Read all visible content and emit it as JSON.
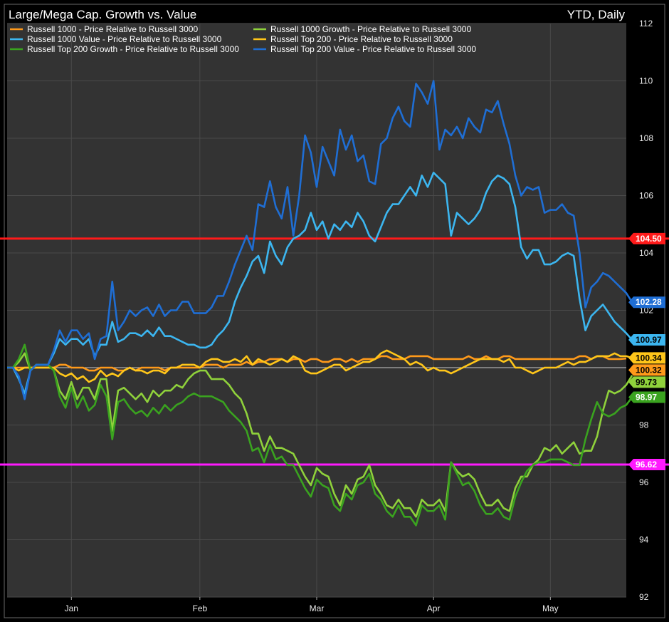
{
  "chart_data": {
    "type": "line",
    "title": "Large/Mega Cap. Growth vs. Value",
    "subtitle": "YTD, Daily",
    "ylim": [
      92,
      112
    ],
    "yticks": [
      92,
      94,
      96,
      98,
      100,
      102,
      104,
      106,
      108,
      110,
      112
    ],
    "xticks": [
      {
        "label": "Jan",
        "x": 11
      },
      {
        "label": "Feb",
        "x": 33
      },
      {
        "label": "Mar",
        "x": 53
      },
      {
        "label": "Apr",
        "x": 73
      },
      {
        "label": "May",
        "x": 93
      }
    ],
    "xlim": [
      0,
      106
    ],
    "grid": true,
    "legend": "top-left",
    "colors": {
      "background": "#333333",
      "frame": "#000000",
      "grid": "#4a4a4a",
      "baseline": "#c8c8c8"
    },
    "reference_lines": [
      {
        "value": 104.5,
        "label": "104.50",
        "color": "#ff1a1a"
      },
      {
        "value": 96.62,
        "label": "96.62",
        "color": "#ff1aff"
      }
    ],
    "series": [
      {
        "name": "Russell 1000 - Price Relative to Russell 3000",
        "color": "#ff9a1a",
        "last": 100.32,
        "label": "100.32",
        "values": [
          100,
          100,
          100,
          100,
          100,
          100,
          100,
          100,
          100,
          100.1,
          100.1,
          100,
          100,
          100,
          99.9,
          99.9,
          100,
          100,
          100,
          99.9,
          99.9,
          100,
          99.9,
          100,
          100,
          100,
          100,
          99.9,
          100,
          100,
          100,
          100,
          100,
          100,
          100.1,
          100.1,
          100.1,
          100,
          100.1,
          100.1,
          100.1,
          100.2,
          100.1,
          100.2,
          100.2,
          100.3,
          100.3,
          100.3,
          100.2,
          100.3,
          100.3,
          100.2,
          100.3,
          100.3,
          100.2,
          100.2,
          100.3,
          100.3,
          100.2,
          100.3,
          100.2,
          100.3,
          100.3,
          100.3,
          100.4,
          100.4,
          100.3,
          100.3,
          100.3,
          100.4,
          100.4,
          100.4,
          100.4,
          100.3,
          100.3,
          100.3,
          100.3,
          100.3,
          100.3,
          100.4,
          100.3,
          100.3,
          100.4,
          100.3,
          100.3,
          100.4,
          100.4,
          100.3,
          100.3,
          100.3,
          100.3,
          100.3,
          100.3,
          100.3,
          100.3,
          100.3,
          100.3,
          100.3,
          100.4,
          100.4,
          100.3,
          100.4,
          100.4,
          100.3,
          100.3,
          100.3,
          100.32
        ]
      },
      {
        "name": "Russell 1000 Growth - Price Relative to Russell 3000",
        "color": "#8fd13b",
        "last": 99.73,
        "label": "99.73",
        "values": [
          100,
          100,
          100.2,
          100.5,
          99.9,
          100.1,
          100.1,
          100.1,
          99.9,
          99.2,
          98.9,
          99.5,
          98.9,
          99.3,
          99.3,
          98.9,
          99.6,
          99.6,
          97.8,
          99.2,
          99.3,
          99.1,
          98.9,
          99.1,
          98.8,
          99.2,
          99.0,
          99.2,
          99.2,
          99.4,
          99.3,
          99.6,
          99.8,
          99.9,
          99.9,
          99.6,
          99.6,
          99.6,
          99.4,
          99.1,
          98.9,
          98.4,
          97.7,
          97.7,
          97.1,
          97.6,
          97.2,
          97.2,
          97.1,
          97.0,
          96.6,
          96.2,
          95.9,
          96.5,
          96.3,
          96.2,
          95.6,
          95.2,
          95.9,
          95.6,
          96.1,
          96.2,
          96.6,
          95.9,
          95.6,
          95.2,
          95.1,
          95.4,
          95.1,
          95.1,
          94.8,
          95.4,
          95.2,
          95.2,
          95.4,
          95.0,
          96.7,
          96.4,
          96.2,
          96.3,
          96.1,
          95.6,
          95.2,
          95.2,
          95.4,
          95.1,
          95.0,
          95.8,
          96.2,
          96.2,
          96.6,
          96.8,
          97.2,
          97.1,
          97.3,
          97.0,
          97.2,
          97.4,
          97.0,
          97.1,
          97.1,
          97.6,
          98.5,
          99.2,
          99.1,
          99.2,
          99.4,
          99.73
        ]
      },
      {
        "name": "Russell 1000 Value - Price Relative to Russell 3000",
        "color": "#3cb6f0",
        "last": 100.97,
        "label": "100.97",
        "values": [
          100,
          100,
          99.6,
          99.1,
          99.9,
          100.1,
          100.1,
          100.1,
          100.5,
          101.0,
          100.8,
          101.0,
          101.0,
          100.8,
          101.0,
          100.4,
          100.8,
          100.8,
          101.6,
          100.9,
          101.0,
          101.2,
          101.2,
          101.1,
          101.3,
          101.1,
          101.4,
          101.1,
          101.1,
          101.0,
          100.9,
          100.8,
          100.8,
          100.7,
          100.7,
          100.8,
          101.1,
          101.3,
          101.6,
          102.3,
          102.8,
          103.2,
          103.7,
          103.9,
          103.3,
          104.4,
          103.9,
          103.6,
          104.2,
          104.5,
          104.6,
          104.8,
          105.4,
          104.8,
          105.1,
          104.5,
          105.0,
          104.8,
          105.1,
          104.9,
          105.4,
          105.1,
          104.6,
          104.4,
          104.9,
          105.4,
          105.7,
          105.7,
          106.0,
          106.3,
          106.0,
          106.7,
          106.3,
          106.8,
          106.6,
          106.4,
          104.6,
          105.4,
          105.2,
          105.0,
          105.2,
          105.5,
          106.1,
          106.5,
          106.7,
          106.6,
          106.4,
          105.6,
          104.2,
          103.8,
          104.1,
          104.1,
          103.6,
          103.6,
          103.7,
          103.9,
          104.0,
          103.9,
          102.4,
          101.3,
          101.8,
          102.0,
          102.2,
          101.9,
          101.6,
          101.4,
          101.2,
          100.97
        ]
      },
      {
        "name": "Russell Top 200 - Price Relative to Russell 3000",
        "color": "#ffc61a",
        "last": 100.34,
        "label": "100.34",
        "values": [
          100,
          100,
          99.9,
          100,
          100,
          100,
          100,
          100,
          100,
          99.8,
          99.7,
          99.8,
          99.6,
          99.7,
          99.5,
          99.6,
          99.9,
          99.7,
          99.8,
          99.7,
          99.9,
          100.0,
          99.9,
          99.9,
          99.8,
          99.9,
          99.9,
          99.8,
          100.0,
          100.0,
          100.1,
          100.1,
          100.1,
          100.0,
          100.2,
          100.3,
          100.3,
          100.2,
          100.2,
          100.3,
          100.2,
          100.4,
          100.1,
          100.3,
          100.2,
          100.1,
          100.2,
          100.3,
          100.2,
          100.4,
          100.3,
          99.9,
          99.8,
          99.8,
          99.9,
          100.0,
          100.1,
          100.1,
          99.9,
          100.0,
          100.1,
          100.2,
          100.2,
          100.3,
          100.5,
          100.6,
          100.5,
          100.4,
          100.3,
          100.1,
          100.2,
          100.1,
          99.9,
          100.0,
          99.9,
          99.9,
          99.8,
          99.9,
          100.0,
          100.1,
          100.2,
          100.3,
          100.3,
          100.3,
          100.3,
          100.2,
          100.3,
          100.0,
          100.0,
          99.9,
          99.8,
          99.9,
          100.0,
          100.0,
          100.0,
          100.1,
          100.2,
          100.1,
          100.2,
          100.2,
          100.3,
          100.4,
          100.4,
          100.4,
          100.5,
          100.4,
          100.4,
          100.34
        ]
      },
      {
        "name": "Russell Top 200 Growth - Price Relative to Russell 3000",
        "color": "#3aa31f",
        "last": 98.97,
        "label": "98.97",
        "values": [
          100,
          100,
          100.3,
          100.8,
          99.9,
          100.1,
          100.1,
          100.1,
          99.9,
          99.0,
          98.6,
          99.3,
          98.6,
          99.0,
          98.5,
          98.7,
          99.4,
          99.0,
          97.5,
          98.8,
          98.9,
          98.6,
          98.4,
          98.5,
          98.3,
          98.6,
          98.4,
          98.7,
          98.5,
          98.7,
          98.8,
          99.0,
          99.1,
          99.0,
          99.0,
          99.0,
          98.9,
          98.8,
          98.5,
          98.3,
          98.1,
          97.8,
          97.1,
          97.2,
          96.7,
          97.3,
          96.8,
          96.9,
          96.6,
          96.6,
          96.2,
          95.8,
          95.5,
          96.1,
          95.9,
          95.8,
          95.2,
          95.0,
          95.6,
          95.4,
          95.9,
          96.0,
          96.3,
          95.6,
          95.4,
          95.0,
          94.8,
          95.2,
          94.8,
          94.8,
          94.5,
          95.2,
          95.0,
          95.0,
          95.2,
          94.7,
          96.7,
          96.3,
          95.9,
          96.0,
          95.7,
          95.2,
          94.9,
          94.9,
          95.1,
          94.8,
          94.7,
          95.5,
          96.0,
          96.4,
          96.6,
          96.7,
          96.7,
          96.8,
          96.8,
          96.8,
          96.7,
          96.6,
          96.6,
          97.5,
          98.2,
          98.8,
          98.4,
          98.3,
          98.4,
          98.6,
          98.7,
          98.97
        ]
      },
      {
        "name": "Russell Top 200 Value - Price Relative to Russell 3000",
        "color": "#1f6ed4",
        "last": 102.28,
        "label": "102.28",
        "values": [
          100,
          100,
          99.7,
          98.9,
          99.9,
          100.1,
          100.1,
          100.1,
          100.6,
          101.3,
          100.9,
          101.3,
          101.3,
          101.0,
          101.2,
          100.3,
          101.0,
          101.1,
          103.0,
          101.3,
          101.6,
          102.0,
          101.8,
          102.0,
          102.1,
          101.8,
          102.2,
          101.8,
          102.0,
          102.0,
          102.3,
          102.3,
          101.9,
          101.9,
          101.9,
          102.1,
          102.5,
          102.5,
          103.0,
          103.6,
          104.1,
          104.6,
          104.1,
          105.7,
          105.6,
          106.5,
          105.6,
          105.2,
          106.3,
          104.6,
          106.0,
          108.1,
          107.5,
          106.3,
          107.7,
          107.2,
          106.7,
          108.3,
          107.6,
          108.1,
          107.2,
          107.4,
          106.5,
          106.4,
          107.8,
          108.0,
          108.7,
          109.1,
          108.6,
          108.4,
          109.9,
          109.6,
          109.2,
          110.0,
          107.6,
          108.3,
          108.1,
          108.4,
          108.0,
          108.7,
          108.4,
          108.2,
          109.0,
          108.9,
          109.3,
          108.5,
          107.8,
          106.7,
          106.0,
          106.3,
          106.2,
          106.3,
          105.4,
          105.5,
          105.5,
          105.7,
          105.4,
          105.3,
          104.0,
          102.1,
          102.8,
          103.0,
          103.3,
          103.2,
          103.0,
          102.8,
          102.6,
          102.28
        ]
      }
    ]
  }
}
